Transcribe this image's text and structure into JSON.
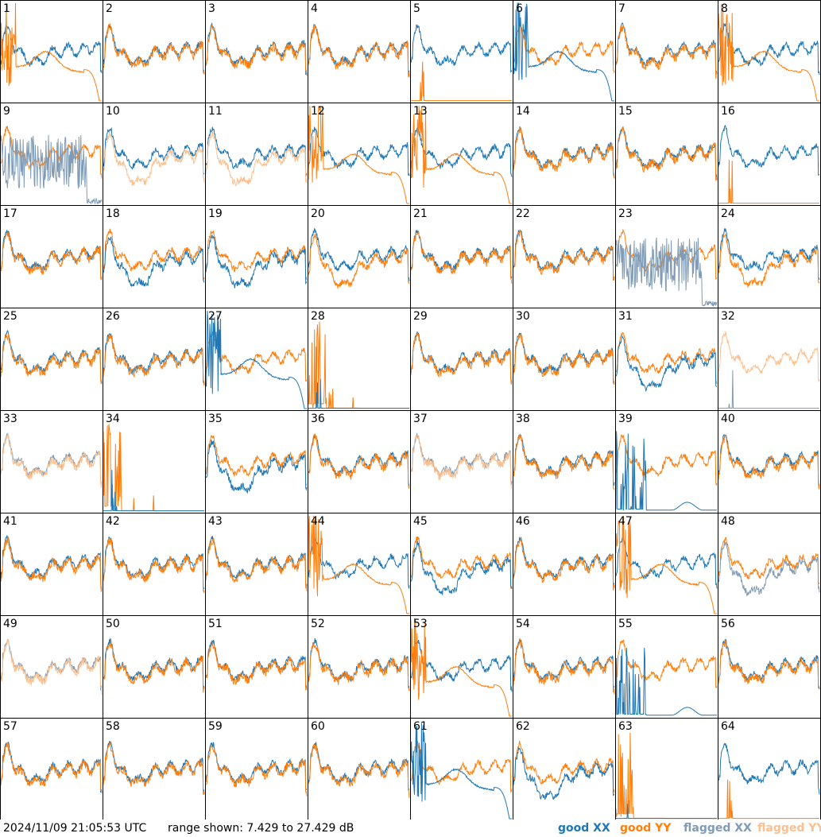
{
  "chart_data": {
    "type": "line",
    "layout": "grid of spectra",
    "panel_labels": [
      "1",
      "2",
      "3",
      "4",
      "5",
      "6",
      "7",
      "8",
      "9",
      "10",
      "11",
      "12",
      "13",
      "14",
      "15",
      "16",
      "17",
      "18",
      "19",
      "20",
      "21",
      "22",
      "23",
      "24",
      "25",
      "26",
      "27",
      "28",
      "29",
      "30",
      "31",
      "32",
      "33",
      "34",
      "35",
      "36",
      "37",
      "38",
      "39",
      "40",
      "41",
      "42",
      "43",
      "44",
      "45",
      "46",
      "47",
      "48",
      "49",
      "50",
      "51",
      "52",
      "53",
      "54",
      "55",
      "56",
      "57",
      "58",
      "59",
      "60",
      "61",
      "62",
      "63",
      "64"
    ],
    "series": [
      {
        "name": "good XX",
        "color": "#1f77b4"
      },
      {
        "name": "good YY",
        "color": "#ff7f0e"
      },
      {
        "name": "flagged XX",
        "color": "#7f9bb5"
      },
      {
        "name": "flagged YY",
        "color": "#fdbf8c"
      }
    ],
    "panel_styles": {
      "normal": [
        2,
        3,
        4,
        7,
        14,
        15,
        17,
        21,
        22,
        25,
        26,
        29,
        30,
        36,
        38,
        40,
        41,
        42,
        43,
        46,
        50,
        51,
        52,
        54,
        56,
        57,
        58,
        59,
        60
      ],
      "orange_drop": [
        1,
        8,
        12,
        13,
        44,
        47,
        53
      ],
      "blue_drop": [
        6,
        27,
        61
      ],
      "xx_only": [
        5,
        16,
        64
      ],
      "noise_burst": [
        28,
        34,
        63
      ],
      "xx_low": [
        18,
        19,
        24,
        31,
        35,
        45,
        62
      ],
      "yy_low": [
        20,
        24
      ],
      "flagged_both": [
        33,
        37,
        49
      ],
      "flagged_yy_low": [
        10,
        11
      ],
      "flagged_yy_only": [
        32
      ],
      "flagged_xx_noisy": [
        9,
        23
      ],
      "flagged_xx_low": [
        48
      ],
      "xx_spikes_low": [
        39,
        55
      ]
    },
    "ylim": [
      7.429,
      27.429
    ],
    "ylabel": "dB"
  },
  "footer": {
    "timestamp": "2024/11/09 21:05:53 UTC",
    "range_text": "range shown: 7.429 to 27.429 dB",
    "legend": {
      "good_xx": "good XX",
      "good_yy": "good YY",
      "flagged_xx": "flagged XX",
      "flagged_yy": "flagged YY"
    }
  }
}
